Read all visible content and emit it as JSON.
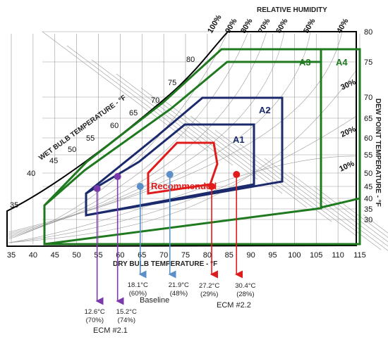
{
  "chart_data": {
    "type": "scatter",
    "chart_kind": "psychrometric chart",
    "title": "RELATIVE HUMIDITY",
    "xlabel": "DRY BULB TEMPERATURE - °F",
    "ylabel_right": "DEW POINT TEMPERATURE - °F",
    "ylabel_left": "WET BULB TEMPERATURE - °F",
    "x_ticks": [
      "35",
      "40",
      "45",
      "50",
      "55",
      "60",
      "65",
      "70",
      "75",
      "80",
      "85",
      "90",
      "95",
      "100",
      "105",
      "110",
      "115"
    ],
    "right_ticks": [
      "80",
      "75",
      "70",
      "65",
      "60",
      "55",
      "50",
      "45",
      "40",
      "35",
      "30"
    ],
    "wet_bulb_ticks": [
      "35",
      "40",
      "45",
      "50",
      "55",
      "60",
      "65",
      "70",
      "75",
      "80"
    ],
    "rh_top_labels": [
      "100%",
      "90%",
      "80%",
      "70%",
      "60%",
      "50%",
      "40%"
    ],
    "rh_inner_labels": [
      "30%",
      "20%",
      "10%"
    ],
    "zones": [
      {
        "label": "Recommended",
        "color": "#e01b1b"
      },
      {
        "label": "A1",
        "color": "#1a2a6c"
      },
      {
        "label": "A2",
        "color": "#1a2a6c"
      },
      {
        "label": "A3",
        "color": "#1f7a1f"
      },
      {
        "label": "A4",
        "color": "#1f7a1f"
      }
    ],
    "points": [
      {
        "group": "ECM #2.1",
        "dry_bulb_F": 54.7,
        "label": "12.6°C",
        "sub": "(70%)",
        "color": "#7a3aaa"
      },
      {
        "group": "ECM #2.1",
        "dry_bulb_F": 59.4,
        "label": "15.2°C",
        "sub": "(74%)",
        "color": "#7a3aaa"
      },
      {
        "group": "Baseline",
        "dry_bulb_F": 64.6,
        "label": "18.1°C",
        "sub": "(60%)",
        "color": "#5b8fc8"
      },
      {
        "group": "Baseline",
        "dry_bulb_F": 71.4,
        "label": "21.9°C",
        "sub": "(48%)",
        "color": "#5b8fc8"
      },
      {
        "group": "ECM #2.2",
        "dry_bulb_F": 81.0,
        "label": "27.2°C",
        "sub": "(29%)",
        "color": "#e01b1b"
      },
      {
        "group": "ECM #2.2",
        "dry_bulb_F": 86.7,
        "label": "30.4°C",
        "sub": "(28%)",
        "color": "#e01b1b"
      }
    ],
    "groups": [
      "ECM #2.1",
      "Baseline",
      "ECM #2.2"
    ],
    "xlim": [
      35,
      115
    ],
    "grid": true
  },
  "colors": {
    "outline": "#000000",
    "grid": "#9a9a9a",
    "recommended": "#e01b1b",
    "a1a2": "#1a2a6c",
    "a3a4": "#1f7a1f"
  }
}
